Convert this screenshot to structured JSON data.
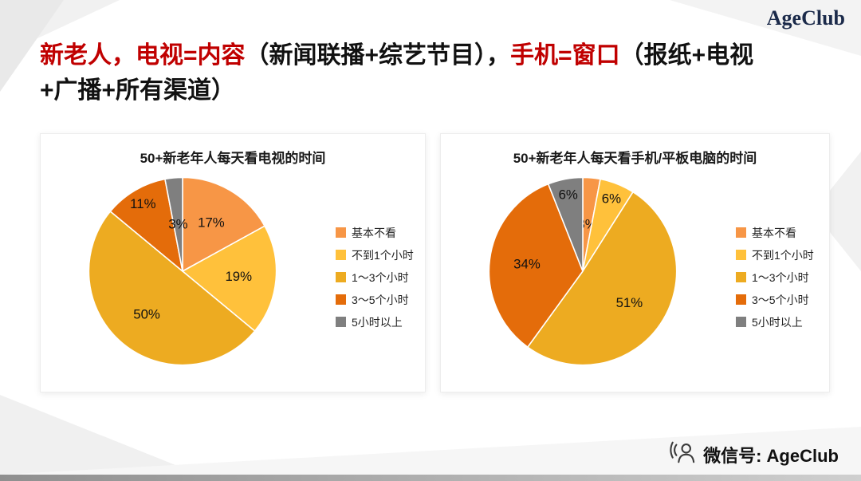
{
  "logo": {
    "text": "AgeClub",
    "color": "#1b2a4a"
  },
  "title": {
    "seg1_red": "新老人，电视=内容",
    "seg2_black": "（新闻联播+综艺节目），",
    "seg3_red": "手机=窗口",
    "seg4_black": "（报纸+电视",
    "seg5_black": "+广播+所有渠道）",
    "accent_color": "#C00000"
  },
  "footer": {
    "wechat_label": "微信号: AgeClub"
  },
  "chart_data": [
    {
      "type": "pie",
      "title": "50+新老年人每天看电视的时间",
      "categories": [
        "基本不看",
        "不到1个小时",
        "1～3个小时",
        "3～5个小时",
        "5小时以上"
      ],
      "values": [
        17,
        19,
        50,
        11,
        3
      ],
      "colors": [
        "#F79646",
        "#FFC13B",
        "#EDAB21",
        "#E46C0A",
        "#7F7F7F"
      ],
      "legend_position": "right",
      "label_format": "percent"
    },
    {
      "type": "pie",
      "title": "50+新老年人每天看手机/平板电脑的时间",
      "categories": [
        "基本不看",
        "不到1个小时",
        "1～3个小时",
        "3～5个小时",
        "5小时以上"
      ],
      "values": [
        3,
        6,
        51,
        34,
        6
      ],
      "colors": [
        "#F79646",
        "#FFC13B",
        "#EDAB21",
        "#E46C0A",
        "#7F7F7F"
      ],
      "legend_position": "right",
      "label_format": "percent"
    }
  ]
}
